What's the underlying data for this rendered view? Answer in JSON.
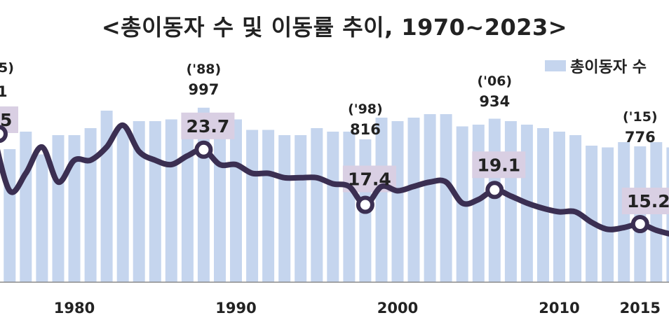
{
  "chart_data": {
    "type": "bar+line",
    "title": "<총이동자 수 및 이동률 추이, 1970~2023>",
    "legend": [
      {
        "label": "총이동자 수",
        "type": "bar",
        "color": "#c5d5ee"
      }
    ],
    "legend_placement": "top-right",
    "x_ticks": [
      "1980",
      "1990",
      "2000",
      "2010",
      "2015"
    ],
    "x_tick_values": [
      1980,
      1990,
      2000,
      2010,
      2015
    ],
    "visible_x_range": [
      1975,
      2017
    ],
    "bar_ylim": [
      0,
      1250
    ],
    "line_ylim": [
      8,
      33
    ],
    "grid": false,
    "series": [
      {
        "name": "총이동자 수",
        "type": "bar",
        "color": "#c5d5ee",
        "x": [
          1975,
          1976,
          1977,
          1978,
          1979,
          1980,
          1981,
          1982,
          1983,
          1984,
          1985,
          1986,
          1987,
          1988,
          1989,
          1990,
          1991,
          1992,
          1993,
          1994,
          1995,
          1996,
          1997,
          1998,
          1999,
          2000,
          2001,
          2002,
          2003,
          2004,
          2005,
          2006,
          2007,
          2008,
          2009,
          2010,
          2011,
          2012,
          2013,
          2014,
          2015,
          2016,
          2017
        ],
        "values": [
          730,
          760,
          860,
          730,
          840,
          840,
          880,
          980,
          890,
          920,
          920,
          930,
          950,
          997,
          950,
          930,
          870,
          870,
          840,
          840,
          880,
          860,
          860,
          816,
          940,
          920,
          940,
          960,
          960,
          890,
          900,
          934,
          920,
          900,
          880,
          860,
          840,
          780,
          770,
          800,
          776,
          800,
          770
        ]
      },
      {
        "name": "이동률",
        "type": "line",
        "color": "#3b2f52",
        "x": [
          1975,
          1976,
          1977,
          1978,
          1979,
          1980,
          1981,
          1982,
          1983,
          1984,
          1985,
          1986,
          1987,
          1988,
          1989,
          1990,
          1991,
          1992,
          1993,
          1994,
          1995,
          1996,
          1997,
          1998,
          1999,
          2000,
          2001,
          2002,
          2003,
          2004,
          2005,
          2006,
          2007,
          2008,
          2009,
          2010,
          2011,
          2012,
          2013,
          2014,
          2015,
          2016,
          2017
        ],
        "values": [
          25.5,
          19.0,
          21.0,
          24.0,
          20.0,
          22.5,
          22.5,
          24.0,
          26.5,
          23.5,
          22.5,
          22.0,
          23.0,
          23.7,
          22.0,
          22.0,
          21.0,
          21.0,
          20.5,
          20.5,
          20.5,
          19.8,
          19.5,
          17.4,
          19.5,
          19.0,
          19.5,
          20.0,
          20.0,
          17.6,
          18.0,
          19.1,
          18.4,
          17.6,
          17.0,
          16.6,
          16.6,
          15.4,
          14.6,
          14.8,
          15.2,
          14.5,
          14.0
        ]
      }
    ],
    "bar_annotations": [
      {
        "year_label": "('88)",
        "value": "997",
        "x": 1988
      },
      {
        "year_label": "('98)",
        "value": "816",
        "x": 1998
      },
      {
        "year_label": "('06)",
        "value": "934",
        "x": 2006
      },
      {
        "year_label": "('15)",
        "value": "776",
        "x": 2015
      }
    ],
    "line_annotations": [
      {
        "label": "23.7",
        "x": 1988,
        "y": 23.7
      },
      {
        "label": "17.4",
        "x": 1998,
        "y": 17.4
      },
      {
        "label": "19.1",
        "x": 2006,
        "y": 19.1
      },
      {
        "label": "15.2",
        "x": 2015,
        "y": 15.2
      }
    ],
    "clipped_edge_labels": {
      "year_label": "5)",
      "value": "1",
      "rate": "5"
    }
  }
}
